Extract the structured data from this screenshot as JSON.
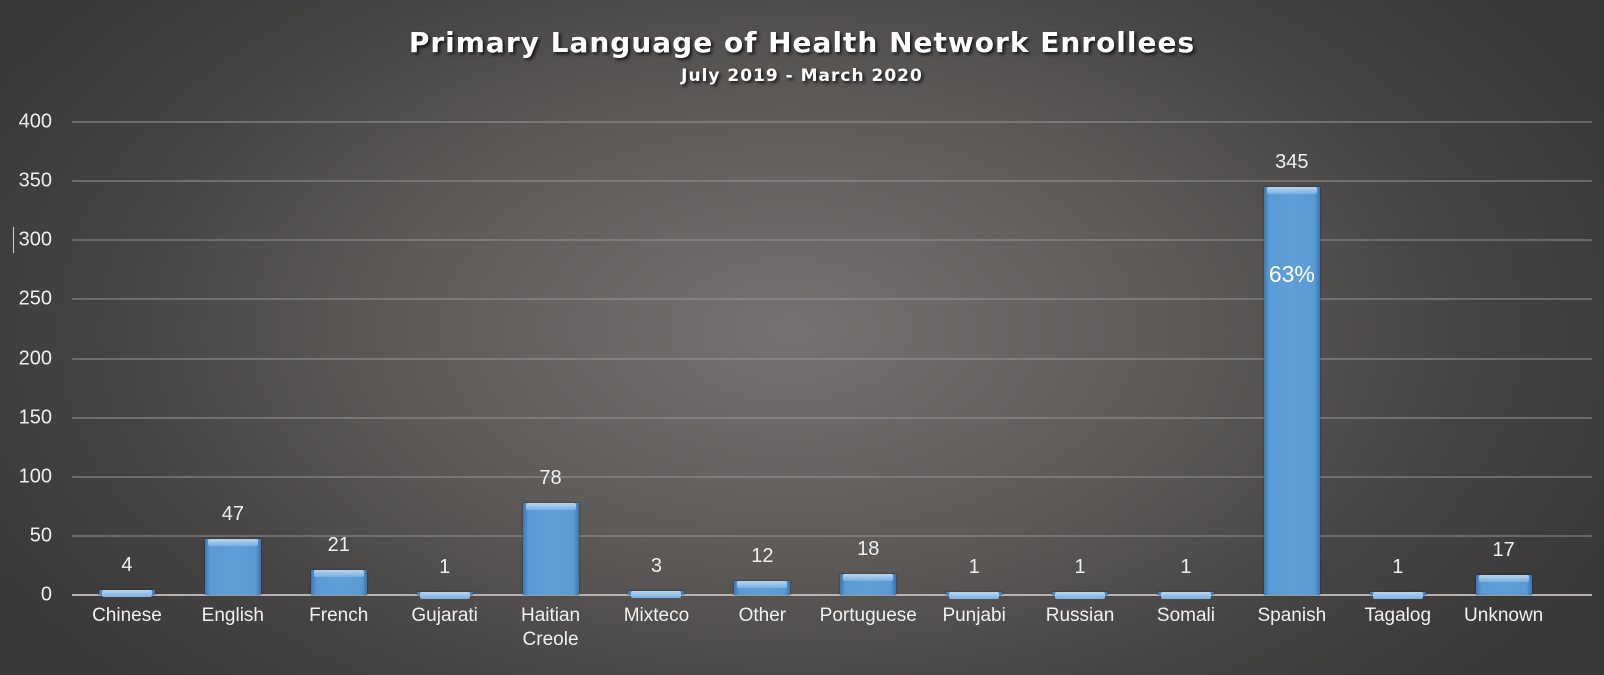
{
  "chart_data": {
    "type": "bar",
    "title": "Primary Language of Health Network Enrollees",
    "subtitle": "July 2019 - March 2020",
    "xlabel": "",
    "ylabel": "",
    "ylim": [
      0,
      400
    ],
    "yticks": [
      0,
      50,
      100,
      150,
      200,
      250,
      300,
      350,
      400
    ],
    "grid": true,
    "legend": "none",
    "categories": [
      "Chinese",
      "English",
      "French",
      "Gujarati",
      "Haitian Creole",
      "Mixteco",
      "Other",
      "Portuguese",
      "Punjabi",
      "Russian",
      "Somali",
      "Spanish",
      "Tagalog",
      "Unknown"
    ],
    "category_labels": [
      [
        "Chinese"
      ],
      [
        "English"
      ],
      [
        "French"
      ],
      [
        "Gujarati"
      ],
      [
        "Haitian",
        "Creole"
      ],
      [
        "Mixteco"
      ],
      [
        "Other"
      ],
      [
        "Portuguese"
      ],
      [
        "Punjabi"
      ],
      [
        "Russian"
      ],
      [
        "Somali"
      ],
      [
        "Spanish"
      ],
      [
        "Tagalog"
      ],
      [
        "Unknown"
      ]
    ],
    "values": [
      4,
      47,
      21,
      1,
      78,
      3,
      12,
      18,
      1,
      1,
      1,
      345,
      1,
      17
    ],
    "annotations": [
      {
        "category": "Spanish",
        "text": "63%"
      }
    ],
    "colors": {
      "bar": "#5b9bd5",
      "background_center": "#767271",
      "background_edge": "#3a3939",
      "text": "#f2f2f2"
    }
  }
}
